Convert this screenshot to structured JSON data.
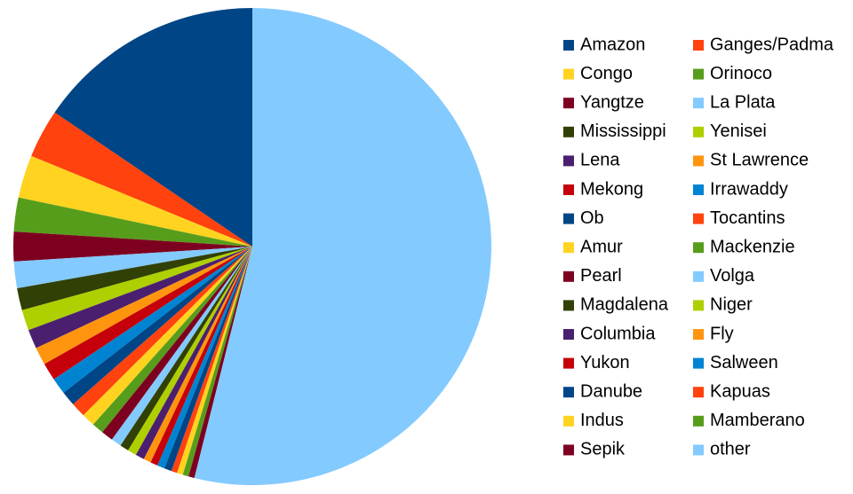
{
  "chart_data": {
    "type": "pie",
    "categories": [
      "Amazon",
      "Ganges/Padma",
      "Congo",
      "Orinoco",
      "Yangtze",
      "La Plata",
      "Mississippi",
      "Yenisei",
      "Lena",
      "St Lawrence",
      "Mekong",
      "Irrawaddy",
      "Ob",
      "Tocantins",
      "Amur",
      "Mackenzie",
      "Pearl",
      "Volga",
      "Magdalena",
      "Niger",
      "Columbia",
      "Fly",
      "Yukon",
      "Salween",
      "Danube",
      "Kapuas",
      "Indus",
      "Mamberano",
      "Sepik",
      "other"
    ],
    "values": [
      15.5,
      3.3,
      2.9,
      2.3,
      2.0,
      1.8,
      1.5,
      1.4,
      1.3,
      1.2,
      1.2,
      1.1,
      1.0,
      1.0,
      0.9,
      0.8,
      0.8,
      0.7,
      0.6,
      0.6,
      0.6,
      0.5,
      0.5,
      0.5,
      0.5,
      0.4,
      0.4,
      0.4,
      0.4,
      53.9
    ],
    "colors": [
      "#004586",
      "#ff420e",
      "#ffd320",
      "#579d1c",
      "#7e0021",
      "#83caff",
      "#314004",
      "#aecf00",
      "#4b1f6f",
      "#ff950e",
      "#c5000b",
      "#0084d1",
      "#004586",
      "#ff420e",
      "#ffd320",
      "#579d1c",
      "#7e0021",
      "#83caff",
      "#314004",
      "#aecf00",
      "#4b1f6f",
      "#ff950e",
      "#c5000b",
      "#0084d1",
      "#004586",
      "#ff420e",
      "#ffd320",
      "#579d1c",
      "#7e0021",
      "#83caff"
    ],
    "legend": "right"
  }
}
